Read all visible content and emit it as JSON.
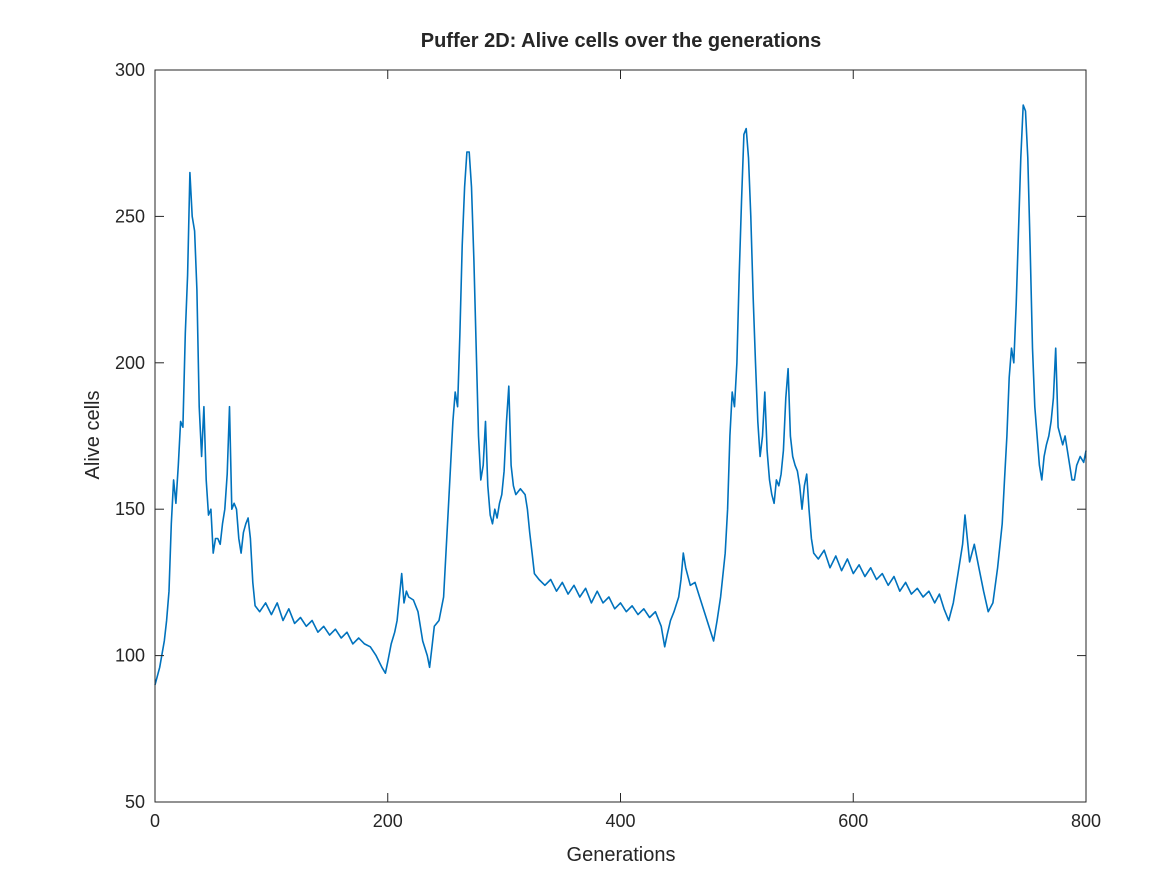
{
  "chart_data": {
    "type": "line",
    "title": "Puffer 2D: Alive cells over the generations",
    "xlabel": "Generations",
    "ylabel": "Alive cells",
    "xlim": [
      0,
      800
    ],
    "ylim": [
      50,
      300
    ],
    "xticks": [
      0,
      200,
      400,
      600,
      800
    ],
    "yticks": [
      50,
      100,
      150,
      200,
      250,
      300
    ],
    "grid": false,
    "legend": null,
    "series_color": "#0072BD",
    "series": [
      {
        "points": [
          [
            0,
            90
          ],
          [
            4,
            96
          ],
          [
            8,
            105
          ],
          [
            10,
            112
          ],
          [
            12,
            122
          ],
          [
            14,
            145
          ],
          [
            16,
            160
          ],
          [
            18,
            152
          ],
          [
            20,
            165
          ],
          [
            22,
            180
          ],
          [
            24,
            178
          ],
          [
            26,
            210
          ],
          [
            28,
            230
          ],
          [
            30,
            265
          ],
          [
            32,
            250
          ],
          [
            34,
            245
          ],
          [
            36,
            225
          ],
          [
            38,
            185
          ],
          [
            40,
            168
          ],
          [
            42,
            185
          ],
          [
            44,
            160
          ],
          [
            46,
            148
          ],
          [
            48,
            150
          ],
          [
            50,
            135
          ],
          [
            52,
            140
          ],
          [
            54,
            140
          ],
          [
            56,
            138
          ],
          [
            58,
            145
          ],
          [
            60,
            150
          ],
          [
            62,
            162
          ],
          [
            64,
            185
          ],
          [
            66,
            150
          ],
          [
            68,
            152
          ],
          [
            70,
            150
          ],
          [
            72,
            140
          ],
          [
            74,
            135
          ],
          [
            76,
            142
          ],
          [
            78,
            145
          ],
          [
            80,
            147
          ],
          [
            82,
            140
          ],
          [
            84,
            125
          ],
          [
            86,
            117
          ],
          [
            90,
            115
          ],
          [
            95,
            118
          ],
          [
            100,
            114
          ],
          [
            105,
            118
          ],
          [
            110,
            112
          ],
          [
            115,
            116
          ],
          [
            120,
            111
          ],
          [
            125,
            113
          ],
          [
            130,
            110
          ],
          [
            135,
            112
          ],
          [
            140,
            108
          ],
          [
            145,
            110
          ],
          [
            150,
            107
          ],
          [
            155,
            109
          ],
          [
            160,
            106
          ],
          [
            165,
            108
          ],
          [
            170,
            104
          ],
          [
            175,
            106
          ],
          [
            180,
            104
          ],
          [
            185,
            103
          ],
          [
            190,
            100
          ],
          [
            195,
            96
          ],
          [
            198,
            94
          ],
          [
            200,
            98
          ],
          [
            203,
            104
          ],
          [
            206,
            108
          ],
          [
            208,
            112
          ],
          [
            210,
            120
          ],
          [
            212,
            128
          ],
          [
            214,
            118
          ],
          [
            216,
            122
          ],
          [
            218,
            120
          ],
          [
            222,
            119
          ],
          [
            226,
            115
          ],
          [
            230,
            105
          ],
          [
            234,
            100
          ],
          [
            236,
            96
          ],
          [
            238,
            103
          ],
          [
            240,
            110
          ],
          [
            244,
            112
          ],
          [
            248,
            120
          ],
          [
            252,
            150
          ],
          [
            254,
            165
          ],
          [
            256,
            180
          ],
          [
            258,
            190
          ],
          [
            260,
            185
          ],
          [
            262,
            210
          ],
          [
            264,
            240
          ],
          [
            266,
            260
          ],
          [
            268,
            272
          ],
          [
            270,
            272
          ],
          [
            272,
            260
          ],
          [
            274,
            235
          ],
          [
            276,
            205
          ],
          [
            278,
            175
          ],
          [
            280,
            160
          ],
          [
            282,
            165
          ],
          [
            284,
            180
          ],
          [
            286,
            158
          ],
          [
            288,
            148
          ],
          [
            290,
            145
          ],
          [
            292,
            150
          ],
          [
            294,
            147
          ],
          [
            296,
            152
          ],
          [
            298,
            155
          ],
          [
            300,
            163
          ],
          [
            302,
            180
          ],
          [
            304,
            192
          ],
          [
            306,
            165
          ],
          [
            308,
            158
          ],
          [
            310,
            155
          ],
          [
            314,
            157
          ],
          [
            318,
            155
          ],
          [
            320,
            150
          ],
          [
            322,
            142
          ],
          [
            324,
            135
          ],
          [
            326,
            128
          ],
          [
            330,
            126
          ],
          [
            335,
            124
          ],
          [
            340,
            126
          ],
          [
            345,
            122
          ],
          [
            350,
            125
          ],
          [
            355,
            121
          ],
          [
            360,
            124
          ],
          [
            365,
            120
          ],
          [
            370,
            123
          ],
          [
            375,
            118
          ],
          [
            380,
            122
          ],
          [
            385,
            118
          ],
          [
            390,
            120
          ],
          [
            395,
            116
          ],
          [
            400,
            118
          ],
          [
            405,
            115
          ],
          [
            410,
            117
          ],
          [
            415,
            114
          ],
          [
            420,
            116
          ],
          [
            425,
            113
          ],
          [
            430,
            115
          ],
          [
            435,
            110
          ],
          [
            438,
            103
          ],
          [
            440,
            107
          ],
          [
            443,
            112
          ],
          [
            446,
            115
          ],
          [
            450,
            120
          ],
          [
            452,
            126
          ],
          [
            454,
            135
          ],
          [
            456,
            130
          ],
          [
            460,
            124
          ],
          [
            464,
            125
          ],
          [
            468,
            120
          ],
          [
            472,
            115
          ],
          [
            476,
            110
          ],
          [
            480,
            105
          ],
          [
            483,
            112
          ],
          [
            486,
            120
          ],
          [
            490,
            135
          ],
          [
            492,
            150
          ],
          [
            494,
            175
          ],
          [
            496,
            190
          ],
          [
            498,
            185
          ],
          [
            500,
            200
          ],
          [
            502,
            230
          ],
          [
            504,
            255
          ],
          [
            506,
            278
          ],
          [
            508,
            280
          ],
          [
            510,
            270
          ],
          [
            512,
            250
          ],
          [
            514,
            222
          ],
          [
            516,
            200
          ],
          [
            518,
            180
          ],
          [
            520,
            168
          ],
          [
            522,
            175
          ],
          [
            524,
            190
          ],
          [
            526,
            170
          ],
          [
            528,
            160
          ],
          [
            530,
            155
          ],
          [
            532,
            152
          ],
          [
            534,
            160
          ],
          [
            536,
            158
          ],
          [
            538,
            162
          ],
          [
            540,
            170
          ],
          [
            542,
            188
          ],
          [
            544,
            198
          ],
          [
            546,
            175
          ],
          [
            548,
            168
          ],
          [
            550,
            165
          ],
          [
            552,
            163
          ],
          [
            554,
            158
          ],
          [
            556,
            150
          ],
          [
            558,
            158
          ],
          [
            560,
            162
          ],
          [
            562,
            150
          ],
          [
            564,
            140
          ],
          [
            566,
            135
          ],
          [
            570,
            133
          ],
          [
            575,
            136
          ],
          [
            580,
            130
          ],
          [
            585,
            134
          ],
          [
            590,
            129
          ],
          [
            595,
            133
          ],
          [
            600,
            128
          ],
          [
            605,
            131
          ],
          [
            610,
            127
          ],
          [
            615,
            130
          ],
          [
            620,
            126
          ],
          [
            625,
            128
          ],
          [
            630,
            124
          ],
          [
            635,
            127
          ],
          [
            640,
            122
          ],
          [
            645,
            125
          ],
          [
            650,
            121
          ],
          [
            655,
            123
          ],
          [
            660,
            120
          ],
          [
            665,
            122
          ],
          [
            670,
            118
          ],
          [
            674,
            121
          ],
          [
            678,
            116
          ],
          [
            682,
            112
          ],
          [
            686,
            118
          ],
          [
            690,
            128
          ],
          [
            694,
            138
          ],
          [
            696,
            148
          ],
          [
            698,
            140
          ],
          [
            700,
            132
          ],
          [
            704,
            138
          ],
          [
            708,
            130
          ],
          [
            712,
            122
          ],
          [
            716,
            115
          ],
          [
            720,
            118
          ],
          [
            724,
            130
          ],
          [
            728,
            145
          ],
          [
            730,
            160
          ],
          [
            732,
            175
          ],
          [
            734,
            195
          ],
          [
            736,
            205
          ],
          [
            738,
            200
          ],
          [
            740,
            220
          ],
          [
            742,
            245
          ],
          [
            744,
            270
          ],
          [
            746,
            288
          ],
          [
            748,
            286
          ],
          [
            750,
            270
          ],
          [
            752,
            240
          ],
          [
            754,
            205
          ],
          [
            756,
            185
          ],
          [
            758,
            175
          ],
          [
            760,
            165
          ],
          [
            762,
            160
          ],
          [
            764,
            168
          ],
          [
            766,
            172
          ],
          [
            768,
            175
          ],
          [
            770,
            180
          ],
          [
            772,
            188
          ],
          [
            774,
            205
          ],
          [
            776,
            178
          ],
          [
            778,
            175
          ],
          [
            780,
            172
          ],
          [
            782,
            175
          ],
          [
            784,
            170
          ],
          [
            786,
            165
          ],
          [
            788,
            160
          ],
          [
            790,
            160
          ],
          [
            792,
            165
          ],
          [
            795,
            168
          ],
          [
            798,
            166
          ],
          [
            800,
            170
          ]
        ]
      }
    ]
  }
}
